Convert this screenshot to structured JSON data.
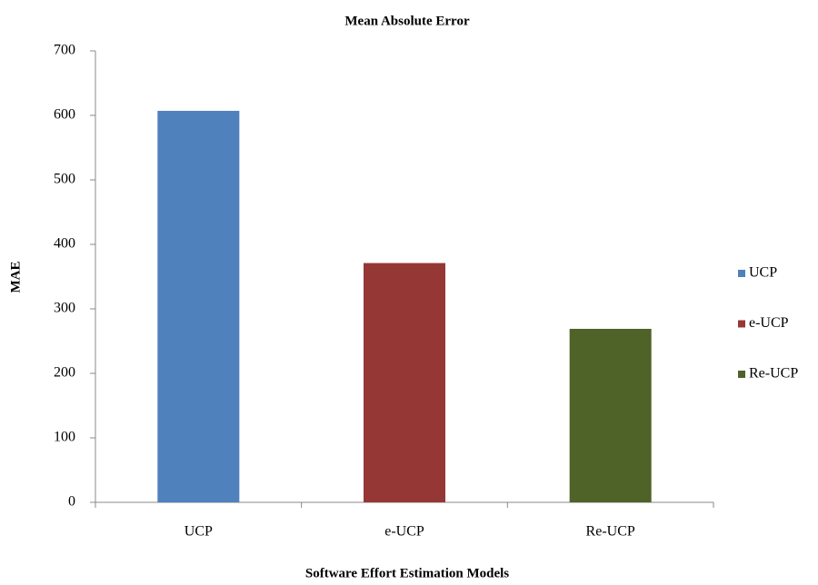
{
  "chart_data": {
    "type": "bar",
    "title": "Mean Absolute Error",
    "x_label": "Software Effort Estimation Models",
    "y_label": "MAE",
    "categories": [
      "UCP",
      "e-UCP",
      "Re-UCP"
    ],
    "series": [
      {
        "name": "UCP",
        "color": "#4f81bd",
        "values": [
          607,
          null,
          null
        ]
      },
      {
        "name": "e-UCP",
        "color": "#953735",
        "values": [
          null,
          371,
          null
        ]
      },
      {
        "name": "Re-UCP",
        "color": "#4f6228",
        "values": [
          null,
          null,
          269
        ]
      }
    ],
    "ylim": [
      0,
      700
    ],
    "yticks": [
      0,
      100,
      200,
      300,
      400,
      500,
      600,
      700
    ],
    "grid": false,
    "legend": "right"
  }
}
